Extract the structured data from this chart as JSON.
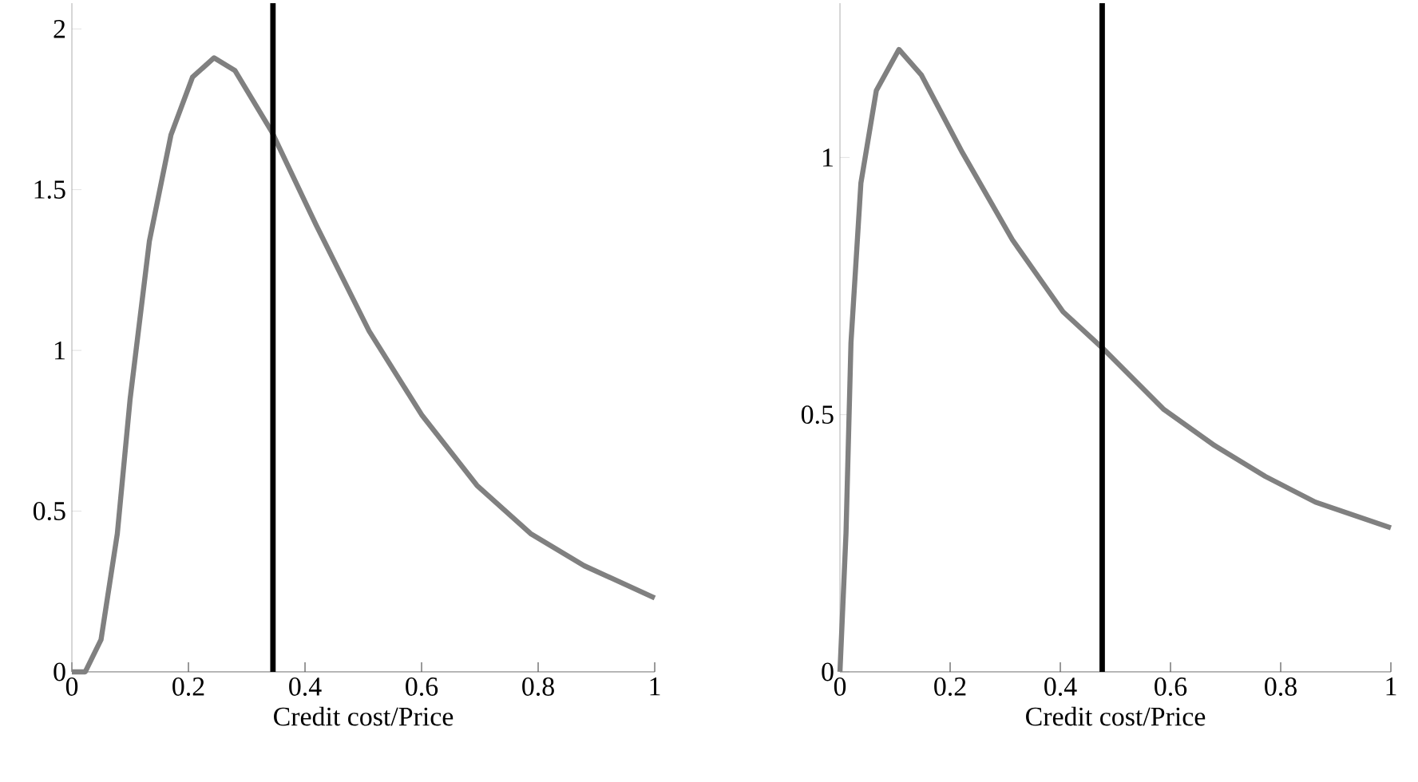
{
  "chart_data": [
    {
      "type": "line",
      "xlabel": "Credit cost/Price",
      "xlim": [
        0,
        1
      ],
      "ylim": [
        0,
        2.08
      ],
      "xticks": [
        0,
        0.2,
        0.4,
        0.6,
        0.8,
        1
      ],
      "yticks": [
        0,
        0.5,
        1,
        1.5,
        2
      ],
      "series": [
        {
          "color": "#808080",
          "x": [
            0,
            0.023,
            0.05,
            0.078,
            0.1,
            0.133,
            0.17,
            0.207,
            0.244,
            0.28,
            0.343,
            0.419,
            0.51,
            0.6,
            0.695,
            0.787,
            0.879,
            1
          ],
          "values": [
            0,
            0,
            0.1,
            0.43,
            0.85,
            1.34,
            1.67,
            1.85,
            1.91,
            1.87,
            1.68,
            1.39,
            1.06,
            0.8,
            0.58,
            0.43,
            0.33,
            0.23
          ]
        }
      ],
      "ref_lines": [
        {
          "axis": "x",
          "value": 0.345,
          "color": "#000000"
        }
      ]
    },
    {
      "type": "line",
      "xlabel": "Credit cost/Price",
      "xlim": [
        0,
        1
      ],
      "ylim": [
        0,
        1.3
      ],
      "xticks": [
        0,
        0.2,
        0.4,
        0.6,
        0.8,
        1
      ],
      "yticks": [
        0,
        0.5,
        1
      ],
      "series": [
        {
          "color": "#808080",
          "x": [
            0,
            0.011,
            0.02,
            0.038,
            0.066,
            0.107,
            0.148,
            0.222,
            0.313,
            0.405,
            0.476,
            0.588,
            0.68,
            0.772,
            0.863,
            1
          ],
          "values": [
            0,
            0.27,
            0.64,
            0.95,
            1.13,
            1.21,
            1.16,
            1.01,
            0.84,
            0.7,
            0.63,
            0.51,
            0.44,
            0.38,
            0.33,
            0.28
          ]
        }
      ],
      "ref_lines": [
        {
          "axis": "x",
          "value": 0.476,
          "color": "#000000"
        }
      ]
    }
  ]
}
